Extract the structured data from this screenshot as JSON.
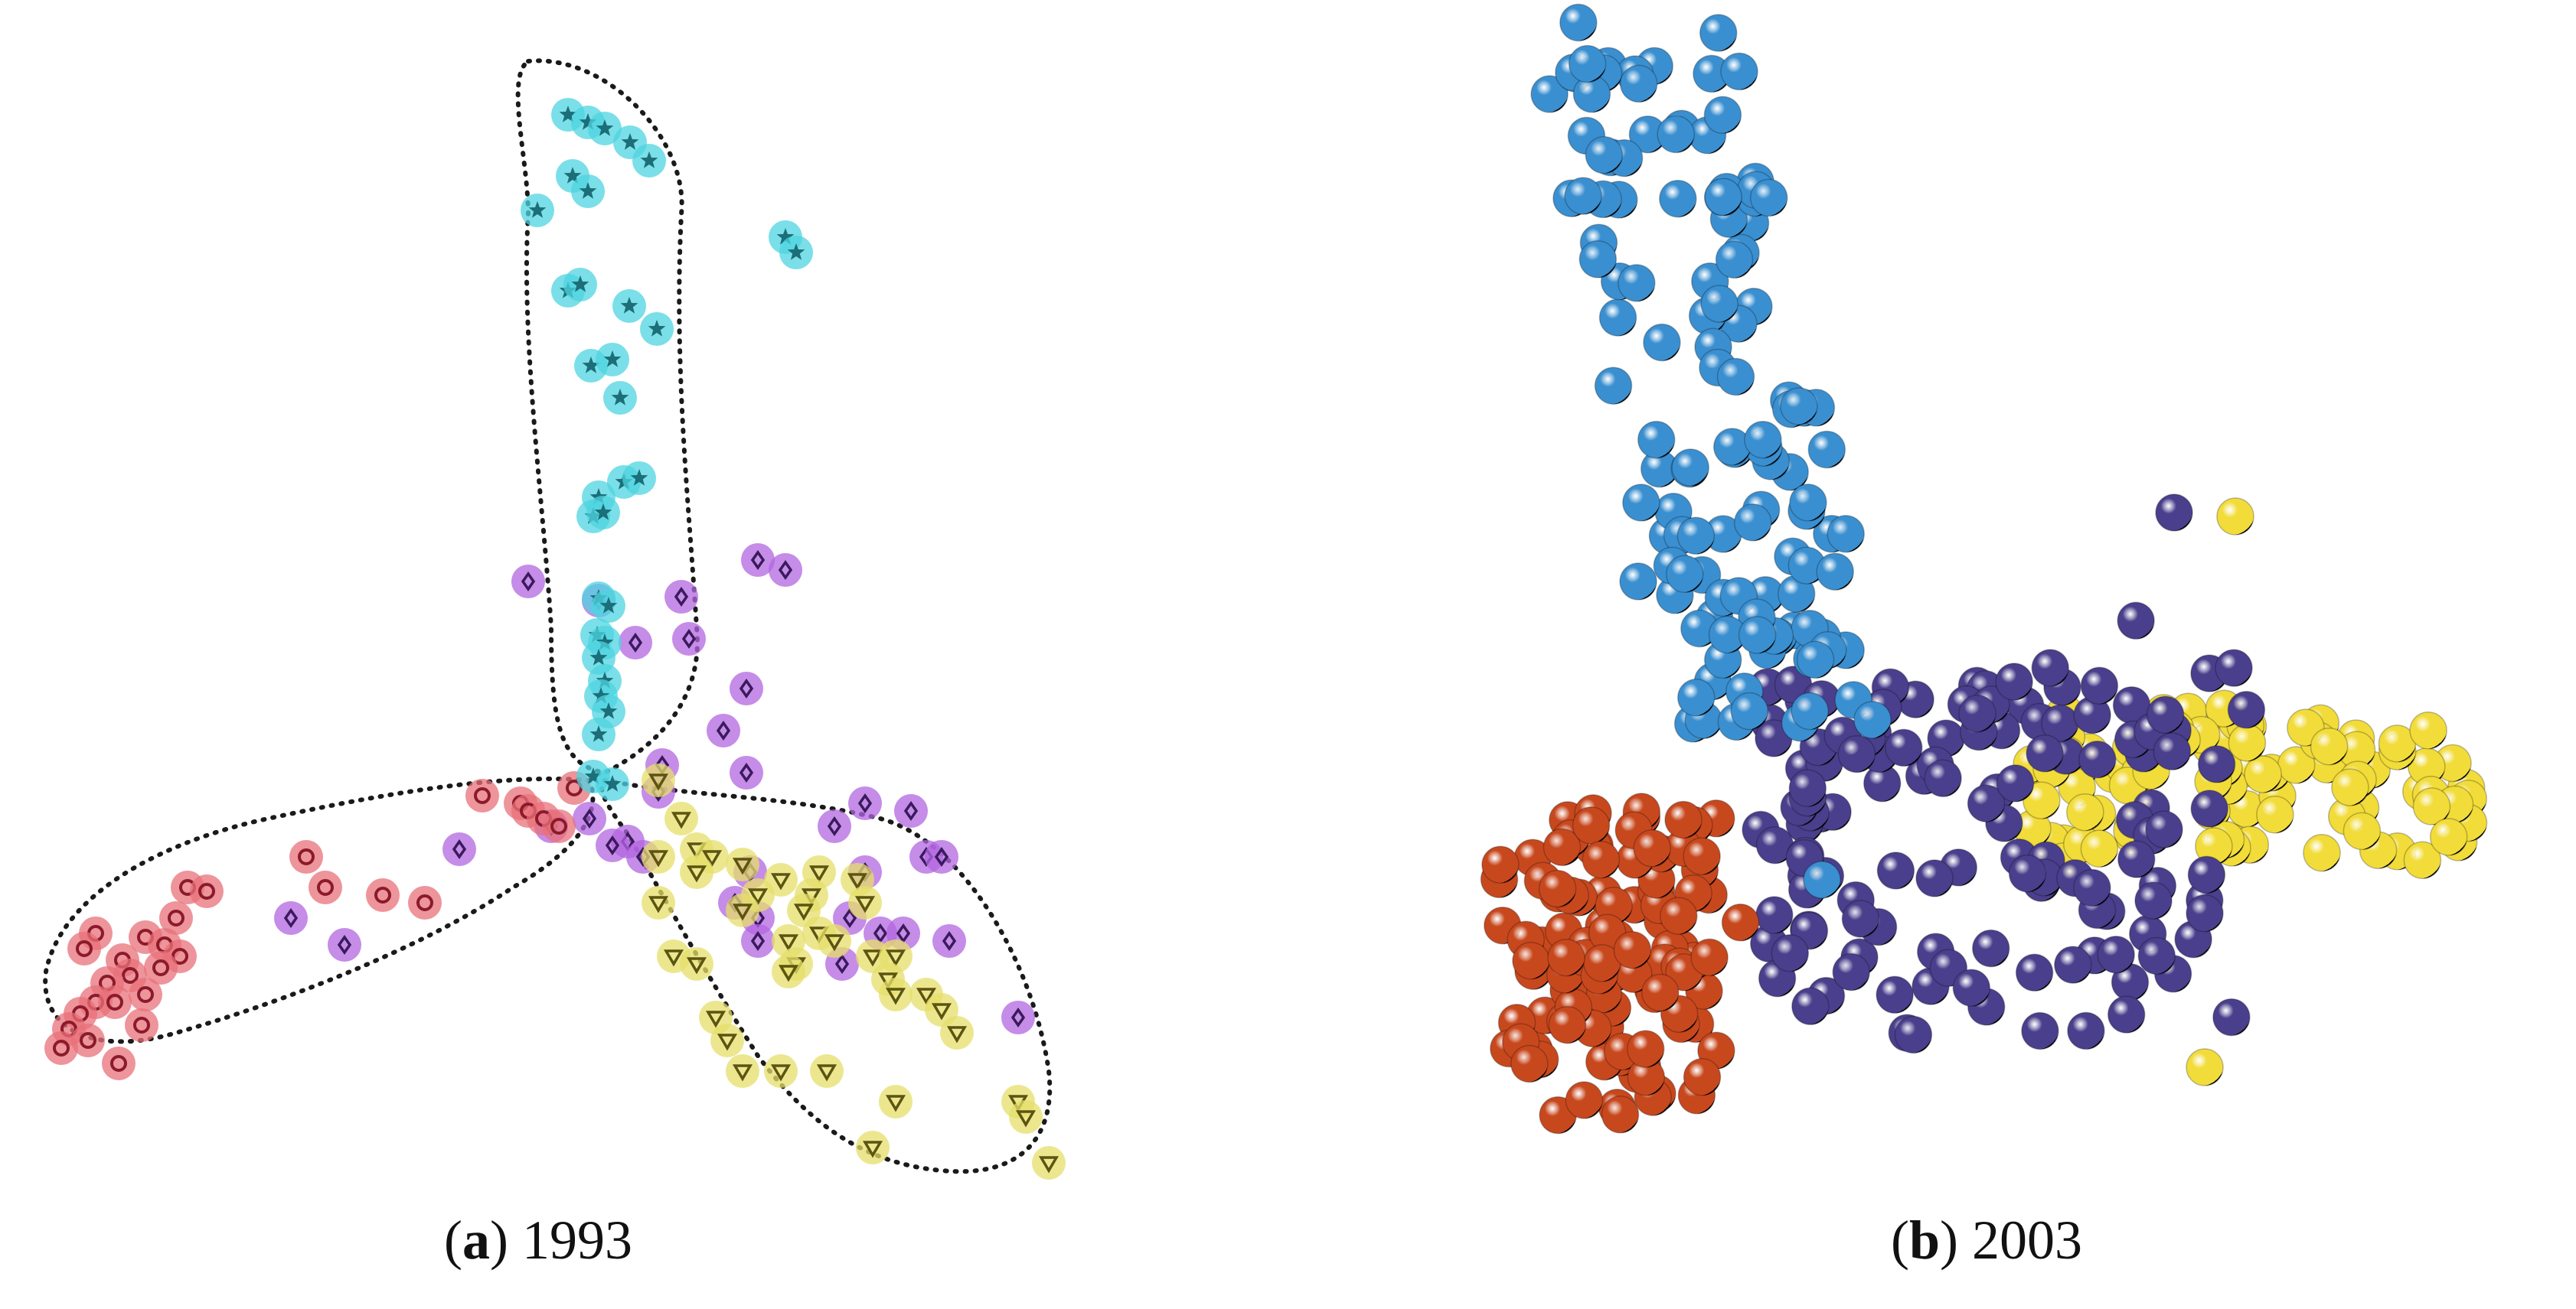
{
  "figure": {
    "panels": [
      {
        "id": "a",
        "letter": "a",
        "year": "1993"
      },
      {
        "id": "b",
        "letter": "b",
        "year": "2003"
      }
    ]
  },
  "colors": {
    "red": "#e8707a",
    "red_marker": "#8b1a2a",
    "cyan": "#4ed4e0",
    "cyan_marker": "#1c6e78",
    "purple": "#b166e0",
    "purple_marker": "#3a1a5c",
    "yellow": "#e6df6a",
    "yellow_marker": "#5c5410",
    "ball_blue": "#3a8fd0",
    "ball_purple": "#4a3f8c",
    "ball_yellow": "#f2dc3a",
    "ball_red": "#c8481e"
  },
  "icons": {
    "red_group": "circle-marker",
    "cyan_group": "star-marker",
    "purple_group": "diamond-marker",
    "yellow_group": "triangle-marker"
  }
}
